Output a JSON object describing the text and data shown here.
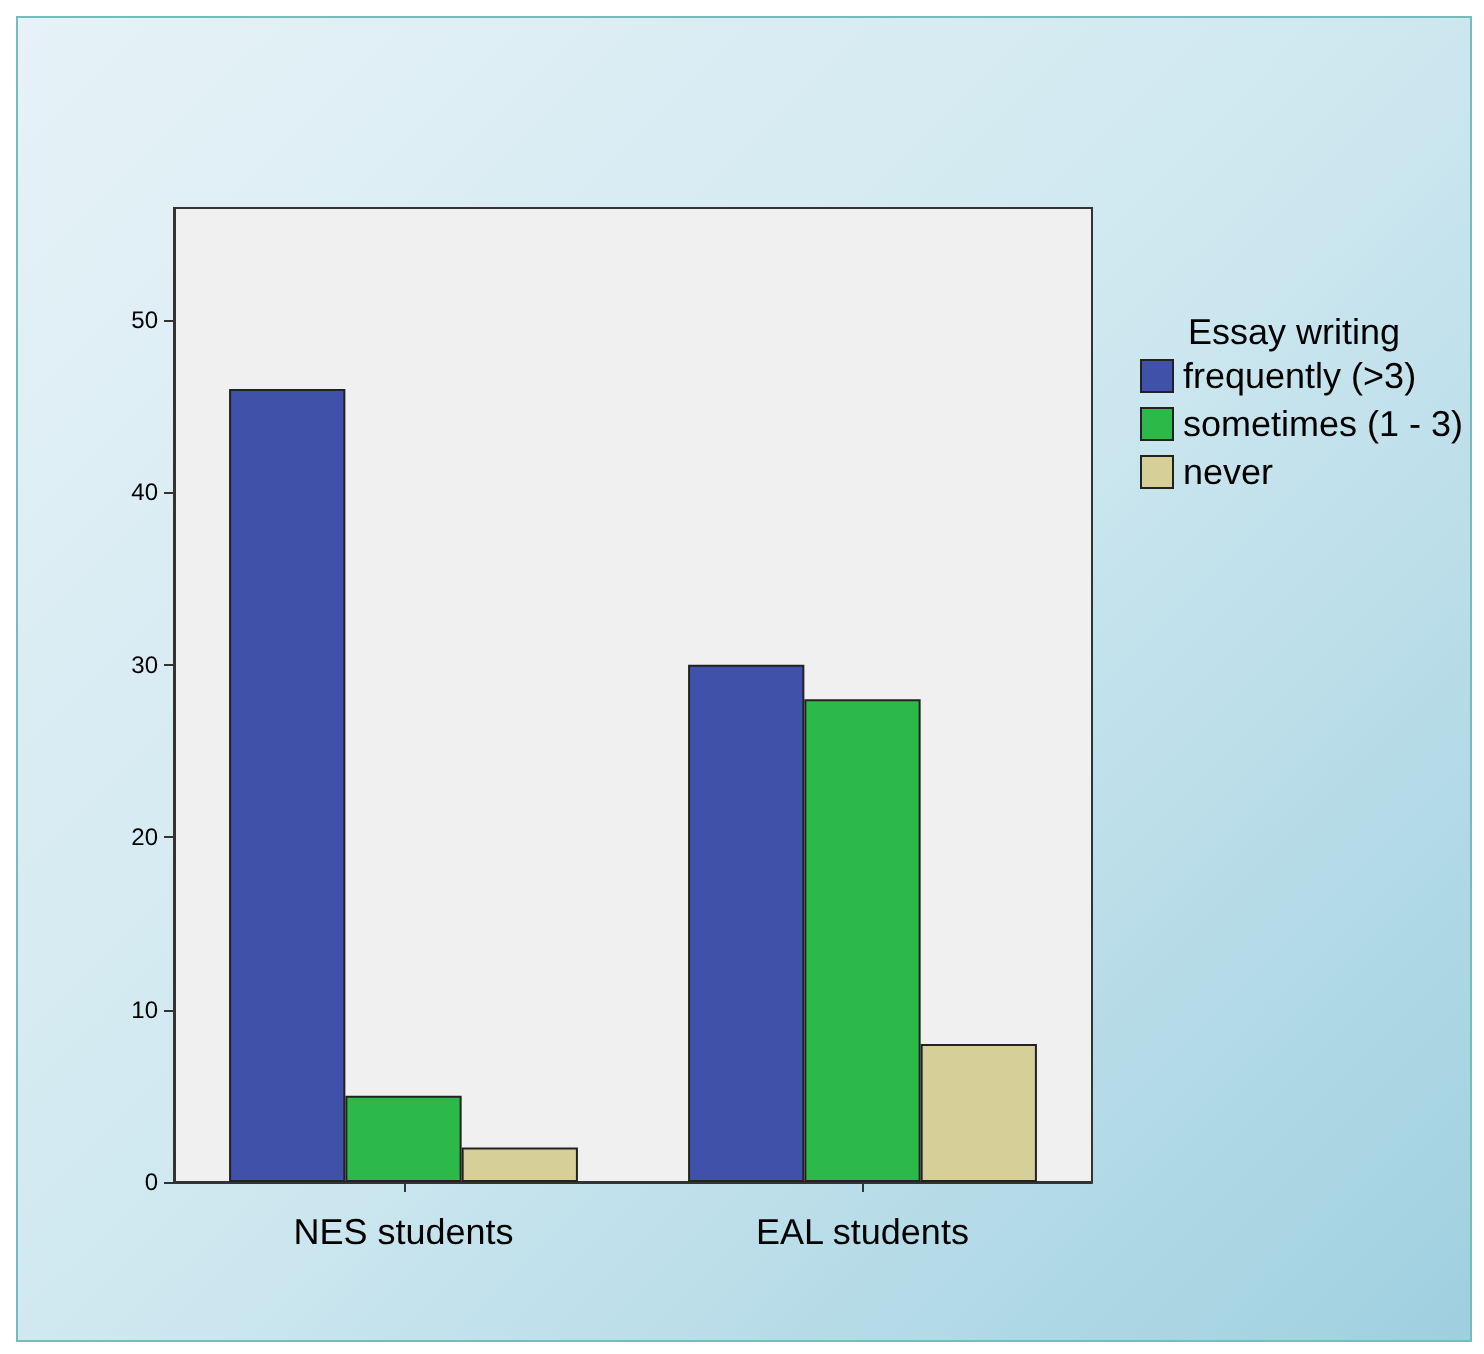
{
  "chart_data": {
    "type": "bar",
    "categories": [
      "NES students",
      "EAL students"
    ],
    "legend_title": "Essay writing",
    "legend": "right",
    "series": [
      {
        "name": "frequently (>3)",
        "color": "#3f51a8",
        "values": [
          46,
          30
        ]
      },
      {
        "name": "sometimes (1 - 3)",
        "color": "#2db84a",
        "values": [
          5,
          28
        ]
      },
      {
        "name": "never",
        "color": "#d6cf98",
        "values": [
          2,
          8
        ]
      }
    ],
    "ylim": [
      0,
      56.5
    ],
    "yticks": [
      0,
      10,
      20,
      30,
      40,
      50
    ],
    "grid": false
  }
}
